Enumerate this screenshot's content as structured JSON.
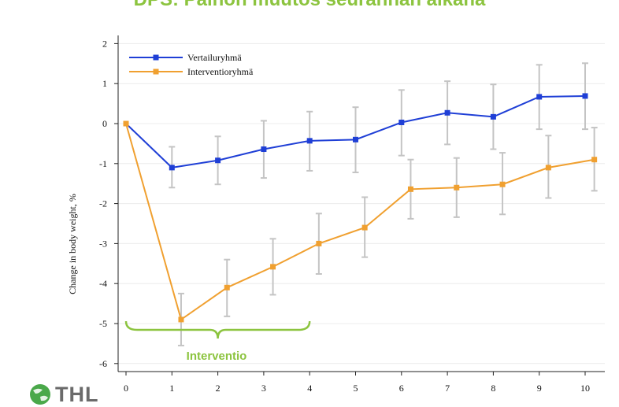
{
  "title": "DPS: Painon muutos seurannan aikana",
  "logo": {
    "text": "THL",
    "icon": "globe-icon",
    "color": "#3a9a3a"
  },
  "chart_data": {
    "type": "line",
    "title": "DPS: Painon muutos seurannan aikana",
    "xlabel": "",
    "ylabel": "Change in body weight, %",
    "xlim": [
      0,
      10
    ],
    "ylim": [
      -6,
      2
    ],
    "xticks": [
      0,
      1,
      2,
      3,
      4,
      5,
      6,
      7,
      8,
      9,
      10
    ],
    "yticks": [
      -6,
      -5,
      -4,
      -3,
      -2,
      -1,
      0,
      1,
      2
    ],
    "grid": "horizontal",
    "legend_position": "top-left",
    "series": [
      {
        "name": "Vertailuryhmä",
        "color": "#1f3fd6",
        "marker": "square",
        "x": [
          0,
          1,
          2,
          3,
          4,
          5,
          6,
          7,
          8,
          9,
          10
        ],
        "y": [
          0,
          -1.1,
          -0.92,
          -0.64,
          -0.43,
          -0.4,
          0.03,
          0.27,
          0.17,
          0.67,
          0.69
        ],
        "err_low": [
          0,
          -1.6,
          -1.52,
          -1.36,
          -1.18,
          -1.22,
          -0.8,
          -0.52,
          -0.64,
          -0.14,
          -0.14
        ],
        "err_high": [
          0,
          -0.58,
          -0.32,
          0.07,
          0.3,
          0.41,
          0.84,
          1.06,
          0.98,
          1.47,
          1.51
        ]
      },
      {
        "name": "Interventioryhmä",
        "color": "#f0a030",
        "marker": "square",
        "x": [
          0,
          1.2,
          2.2,
          3.2,
          4.2,
          5.2,
          6.2,
          7.2,
          8.2,
          9.2,
          10.2
        ],
        "y": [
          0,
          -4.9,
          -4.1,
          -3.58,
          -3.0,
          -2.6,
          -1.64,
          -1.6,
          -1.52,
          -1.1,
          -0.9
        ],
        "err_low": [
          0,
          -5.55,
          -4.82,
          -4.28,
          -3.76,
          -3.34,
          -2.38,
          -2.34,
          -2.27,
          -1.86,
          -1.68
        ],
        "err_high": [
          0,
          -4.25,
          -3.4,
          -2.88,
          -2.25,
          -1.84,
          -0.9,
          -0.86,
          -0.73,
          -0.3,
          -0.1
        ]
      }
    ],
    "annotations": [
      {
        "text": "Interventio",
        "type": "brace",
        "x_start": 0,
        "x_end": 4,
        "y": -5,
        "color": "#8cc43f"
      }
    ]
  }
}
